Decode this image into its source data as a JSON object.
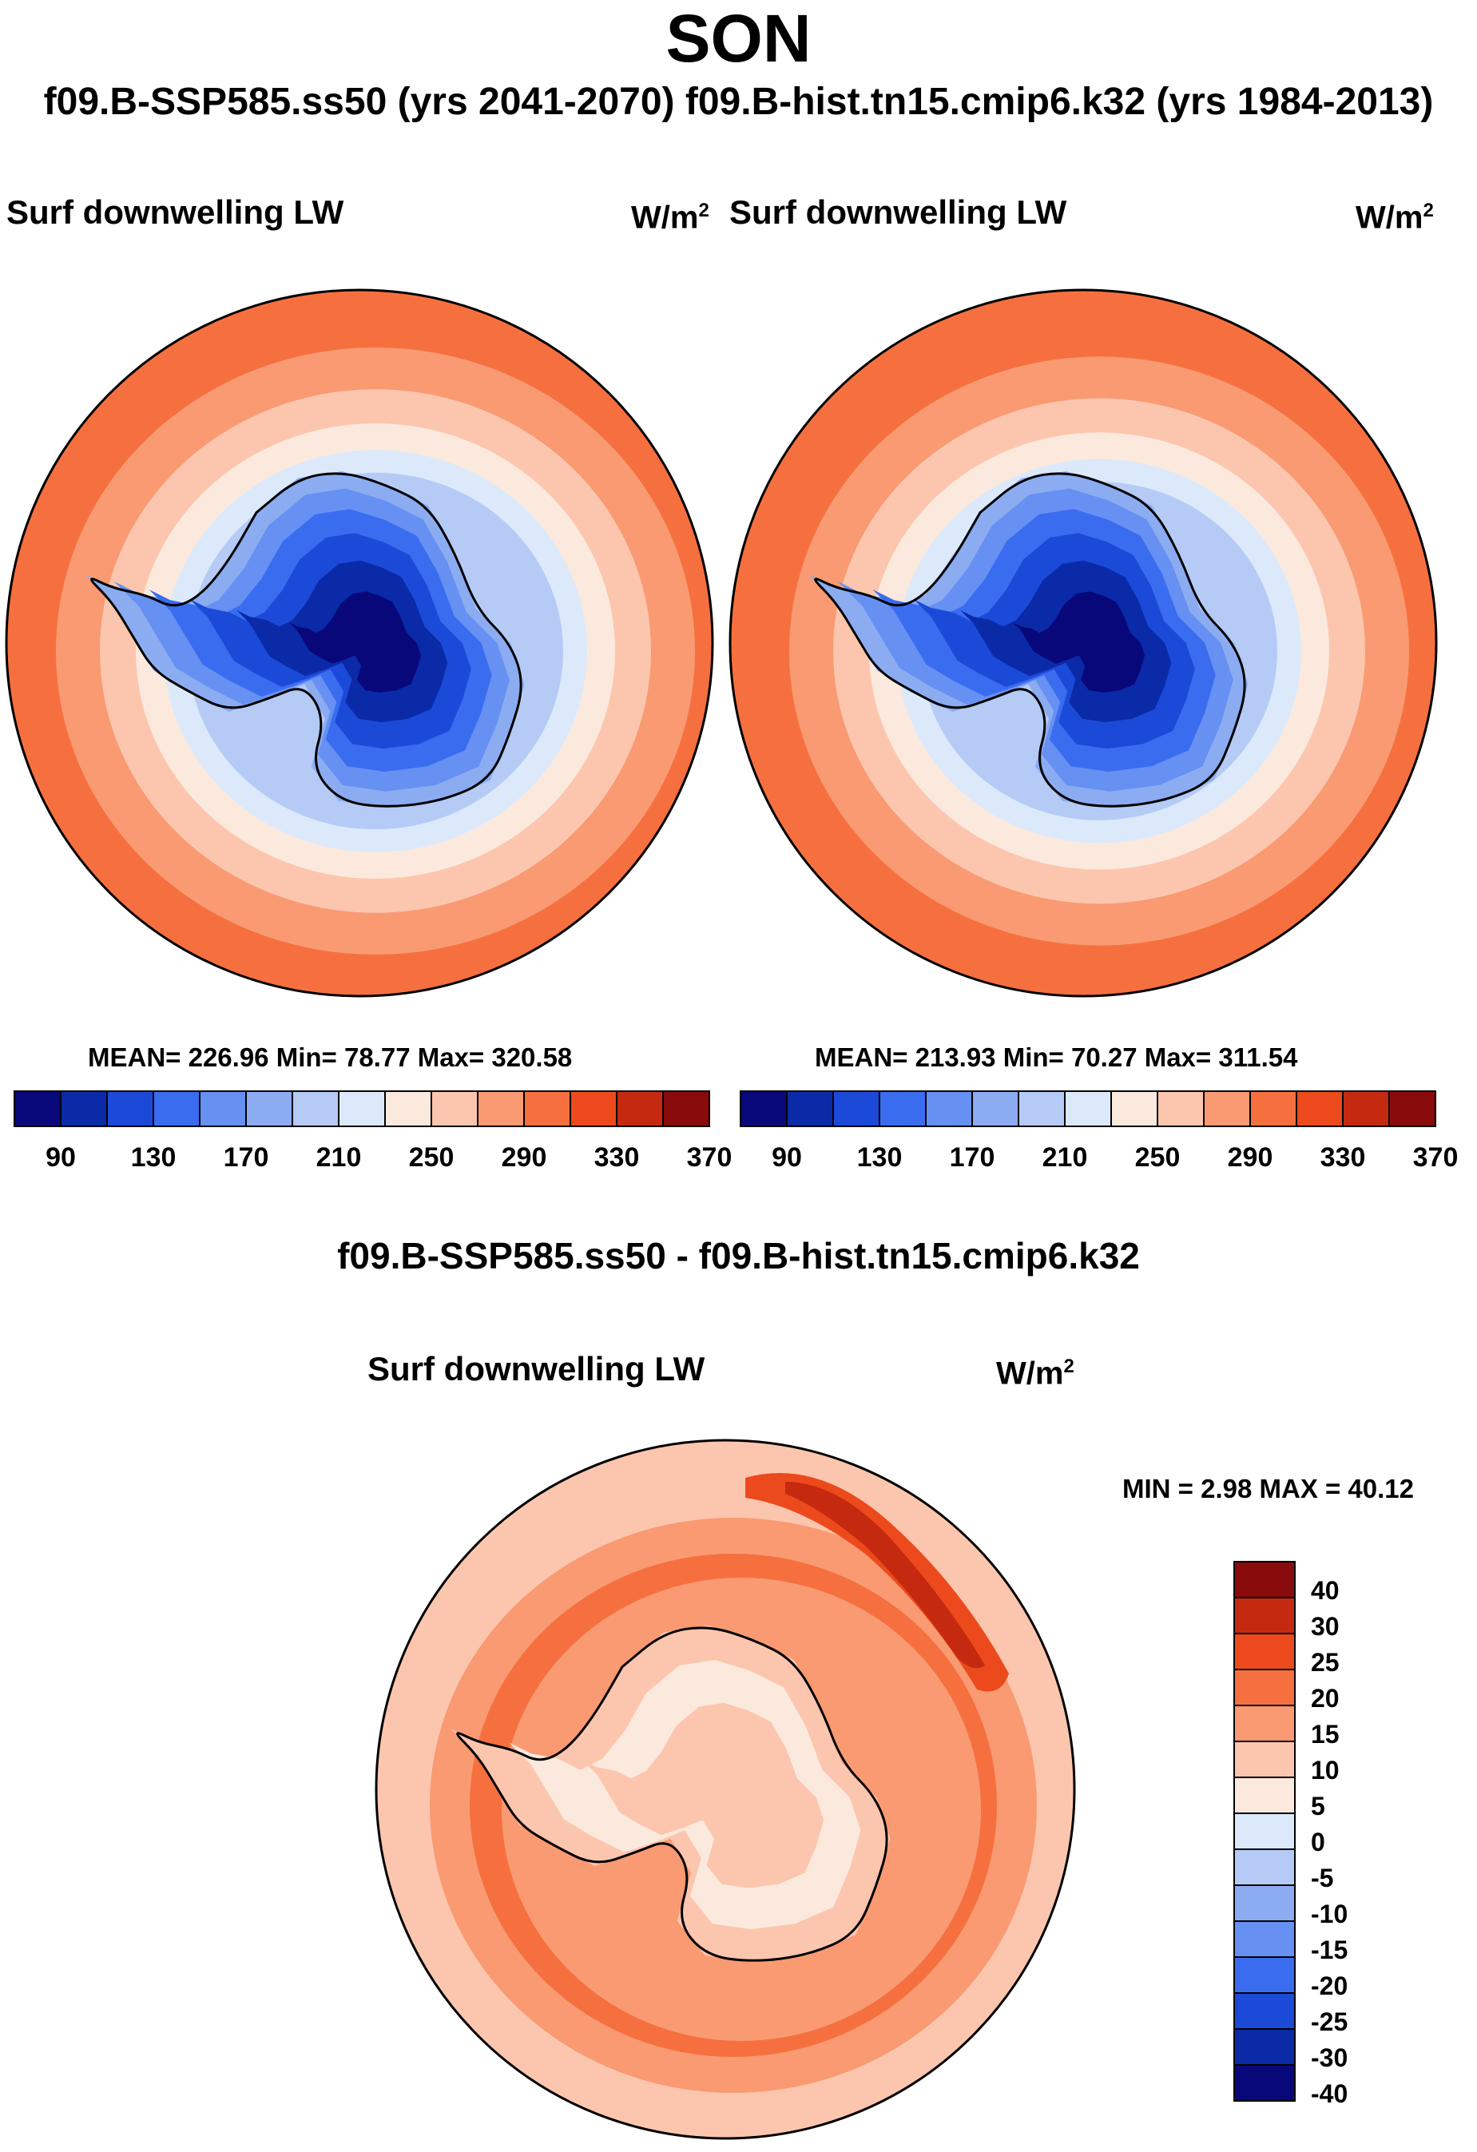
{
  "figure": {
    "title": "SON",
    "subtitle": "f09.B-SSP585.ss50 (yrs 2041-2070)  f09.B-hist.tn15.cmip6.k32 (yrs 1984-2013)",
    "diff_title": "f09.B-SSP585.ss50 - f09.B-hist.tn15.cmip6.k32"
  },
  "panels": {
    "left": {
      "variable": "Surf downwelling LW",
      "units": "W/m",
      "units_exp": "2",
      "stats": "MEAN= 226.96  Min=  78.77  Max= 320.58"
    },
    "right": {
      "variable": "Surf downwelling LW",
      "units": "W/m",
      "units_exp": "2",
      "stats": "MEAN= 213.93  Min=  70.27  Max= 311.54"
    },
    "diff": {
      "variable": "Surf downwelling LW",
      "units": "W/m",
      "units_exp": "2",
      "stats": "MIN =   2.98 MAX =  40.12"
    }
  },
  "colors": {
    "abs_levels": [
      "#08087a",
      "#0a2aa8",
      "#1b4ad8",
      "#3a6cf0",
      "#6690f2",
      "#8cacf2",
      "#b5cbf6",
      "#dbe9fb",
      "#fce9dd",
      "#fcc6ae",
      "#f99a72",
      "#f6703f",
      "#ec4a1c",
      "#c52a10",
      "#8a0b0b"
    ],
    "diff_levels": [
      "#08087a",
      "#0a2aa8",
      "#1b4ad8",
      "#3a6cf0",
      "#6690f2",
      "#8cacf2",
      "#b5cbf6",
      "#dbe9fb",
      "#fce9dd",
      "#fcc6ae",
      "#f99a72",
      "#f6703f",
      "#ec4a1c",
      "#c52a10",
      "#8a0b0b"
    ],
    "coast": "#000000"
  },
  "chart_data": [
    {
      "type": "heatmap",
      "projection": "south-polar-stereographic",
      "title": "Surf downwelling LW",
      "units": "W/m2",
      "case": "f09.B-SSP585.ss50 (yrs 2041-2070)",
      "mean": 226.96,
      "min": 78.77,
      "max": 320.58,
      "colorbar_ticks": [
        90,
        130,
        170,
        210,
        250,
        290,
        330,
        370
      ],
      "colorbar_levels": [
        90,
        110,
        130,
        150,
        170,
        190,
        210,
        230,
        250,
        270,
        290,
        310,
        330,
        350
      ]
    },
    {
      "type": "heatmap",
      "projection": "south-polar-stereographic",
      "title": "Surf downwelling LW",
      "units": "W/m2",
      "case": "f09.B-hist.tn15.cmip6.k32 (yrs 1984-2013)",
      "mean": 213.93,
      "min": 70.27,
      "max": 311.54,
      "colorbar_ticks": [
        90,
        130,
        170,
        210,
        250,
        290,
        330,
        370
      ],
      "colorbar_levels": [
        90,
        110,
        130,
        150,
        170,
        190,
        210,
        230,
        250,
        270,
        290,
        310,
        330,
        350
      ]
    },
    {
      "type": "heatmap",
      "projection": "south-polar-stereographic",
      "title": "Surf downwelling LW",
      "units": "W/m2",
      "case": "f09.B-SSP585.ss50 - f09.B-hist.tn15.cmip6.k32",
      "min": 2.98,
      "max": 40.12,
      "colorbar_ticks": [
        "40",
        "30",
        "25",
        "20",
        "15",
        "10",
        "5",
        "0",
        "-5",
        "-10",
        "-15",
        "-20",
        "-25",
        "-30",
        "-40"
      ]
    }
  ]
}
